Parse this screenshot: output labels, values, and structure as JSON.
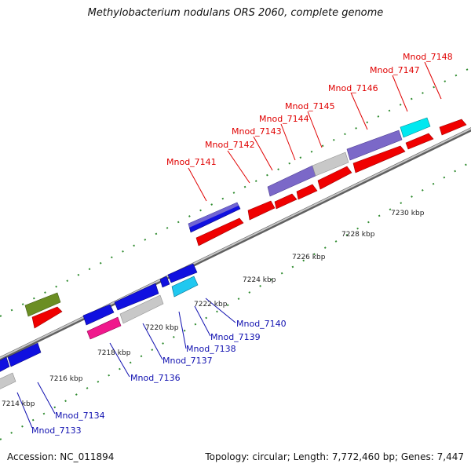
{
  "title": "Methylobacterium nodulans ORS 2060, complete genome",
  "footer": {
    "accession": "Accession: NC_011894",
    "topology": "Topology: circular; Length: 7,772,460 bp; Genes: 7,447"
  },
  "colors": {
    "backbone": "#909090",
    "forward_gene": "#f00000",
    "reverse_gene": "#1010e0",
    "tick": "#2e8b2e",
    "forward_label": "#e00000",
    "reverse_label": "#1010b0"
  },
  "tick_labels": [
    "7214 kbp",
    "7216 kbp",
    "7218 kbp",
    "7220 kbp",
    "7222 kbp",
    "7224 kbp",
    "7226 kbp",
    "7228 kbp",
    "7230 kbp"
  ],
  "forward_labels": [
    "Mnod_7141",
    "Mnod_7142",
    "Mnod_7143",
    "Mnod_7144",
    "Mnod_7145",
    "Mnod_7146",
    "Mnod_7147",
    "Mnod_7148"
  ],
  "reverse_labels": [
    "Mnod_7133",
    "Mnod_7134",
    "Mnod_7136",
    "Mnod_7137",
    "Mnod_7138",
    "Mnod_7139",
    "Mnod_7140"
  ]
}
